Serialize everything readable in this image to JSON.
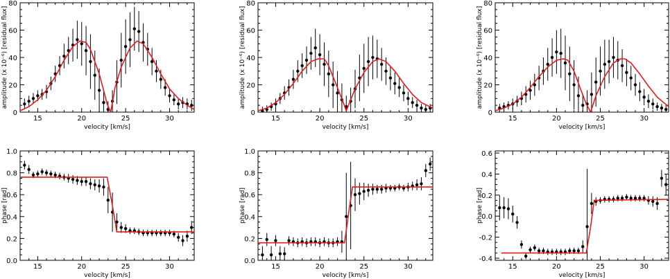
{
  "figure": {
    "layout": "2 rows x 3 columns",
    "model_color": "#e41a1c",
    "data_color": "#000000"
  },
  "chart_data": [
    {
      "type": "scatter",
      "row": "top",
      "col": 1,
      "xlabel": "velocity [km/s]",
      "ylabel": "amplitude (x 10⁻⁶) [residual flux]",
      "xlim": [
        13,
        32.8
      ],
      "ylim": [
        0,
        80
      ],
      "xticks": [
        15,
        20,
        25,
        30
      ],
      "yticks": [
        0,
        20,
        40,
        60,
        80
      ],
      "series": [
        {
          "kind": "points_with_errorbars",
          "x": [
            13.5,
            14.0,
            14.5,
            15.0,
            15.5,
            16.0,
            16.5,
            17.0,
            17.5,
            18.0,
            18.5,
            19.0,
            19.5,
            20.0,
            20.5,
            21.0,
            21.5,
            22.0,
            22.5,
            23.0,
            23.5,
            24.0,
            24.5,
            25.0,
            25.5,
            26.0,
            26.5,
            27.0,
            27.5,
            28.0,
            28.5,
            29.0,
            29.5,
            30.0,
            30.5,
            31.0,
            31.5,
            32.0,
            32.5
          ],
          "y": [
            6,
            8,
            10,
            12,
            13,
            15,
            21,
            28,
            34,
            41,
            45,
            49,
            53,
            50,
            45,
            37,
            27,
            16,
            7,
            2,
            8,
            22,
            38,
            48,
            53,
            61,
            59,
            51,
            46,
            37,
            30,
            24,
            18,
            12,
            9,
            6,
            7,
            6,
            5
          ],
          "err": [
            4,
            4,
            4,
            4,
            4,
            5,
            5,
            6,
            7,
            9,
            10,
            12,
            14,
            16,
            18,
            20,
            18,
            16,
            8,
            6,
            8,
            16,
            20,
            20,
            20,
            16,
            15,
            14,
            12,
            10,
            8,
            7,
            6,
            5,
            4,
            4,
            4,
            4,
            4
          ]
        },
        {
          "kind": "model_curve",
          "x": [
            13,
            14,
            15,
            16,
            17,
            18,
            19,
            19.8,
            20.5,
            21,
            22,
            22.5,
            22.9,
            23.3,
            23.8,
            24.5,
            25.5,
            26.3,
            27,
            28,
            29,
            30,
            31,
            32,
            32.8
          ],
          "y": [
            1,
            4,
            9,
            16,
            26,
            38,
            48,
            52,
            51,
            46,
            28,
            16,
            6,
            0,
            18,
            33,
            47,
            52,
            50,
            40,
            28,
            17,
            10,
            5,
            2
          ]
        }
      ]
    },
    {
      "type": "scatter",
      "row": "top",
      "col": 2,
      "xlabel": "velocity [km/s]",
      "ylabel": "amplitude (x 10⁻⁶) [residual flux]",
      "xlim": [
        13,
        32.8
      ],
      "ylim": [
        0,
        80
      ],
      "xticks": [
        15,
        20,
        25,
        30
      ],
      "yticks": [
        0,
        20,
        40,
        60,
        80
      ],
      "series": [
        {
          "kind": "points_with_errorbars",
          "x": [
            13.5,
            14.0,
            14.5,
            15.0,
            15.5,
            16.0,
            16.5,
            17.0,
            17.5,
            18.0,
            18.5,
            19.0,
            19.5,
            20.0,
            20.5,
            21.0,
            21.5,
            22.0,
            22.5,
            23.0,
            23.5,
            24.0,
            24.5,
            25.0,
            25.5,
            26.0,
            26.5,
            27.0,
            27.5,
            28.0,
            28.5,
            29.0,
            29.5,
            30.0,
            30.5,
            31.0,
            31.5,
            32.0,
            32.5
          ],
          "y": [
            1,
            2,
            4,
            6,
            10,
            14,
            18,
            24,
            30,
            34,
            38,
            43,
            47,
            42,
            35,
            28,
            20,
            14,
            9,
            4,
            8,
            17,
            25,
            32,
            37,
            40,
            39,
            35,
            30,
            25,
            21,
            18,
            14,
            10,
            7,
            5,
            3,
            2,
            3
          ],
          "err": [
            3,
            3,
            3,
            4,
            4,
            5,
            6,
            7,
            8,
            9,
            10,
            12,
            14,
            15,
            16,
            17,
            17,
            16,
            12,
            8,
            10,
            14,
            17,
            18,
            18,
            16,
            14,
            12,
            10,
            9,
            8,
            7,
            6,
            5,
            4,
            4,
            3,
            3,
            3
          ]
        },
        {
          "kind": "model_curve",
          "x": [
            13,
            14,
            15,
            16,
            17,
            18,
            19,
            19.8,
            20.5,
            21,
            22,
            22.6,
            23,
            23.5,
            24,
            25,
            26,
            26.7,
            27.5,
            28.5,
            29.5,
            30.5,
            31.5,
            32.8
          ],
          "y": [
            1,
            3,
            7,
            13,
            21,
            30,
            37,
            39,
            39,
            34,
            18,
            8,
            1,
            9,
            17,
            29,
            37,
            39,
            37,
            30,
            21,
            13,
            7,
            3
          ]
        }
      ]
    },
    {
      "type": "scatter",
      "row": "top",
      "col": 3,
      "xlabel": "velocity [km/s]",
      "ylabel": "amplitude (x 10⁻⁶) [residual flux]",
      "xlim": [
        13,
        32.8
      ],
      "ylim": [
        0,
        80
      ],
      "xticks": [
        15,
        20,
        25,
        30
      ],
      "yticks": [
        0,
        20,
        40,
        60,
        80
      ],
      "series": [
        {
          "kind": "points_with_errorbars",
          "x": [
            13.5,
            14.0,
            14.5,
            15.0,
            15.5,
            16.0,
            16.5,
            17.0,
            17.5,
            18.0,
            18.5,
            19.0,
            19.5,
            20.0,
            20.5,
            21.0,
            21.5,
            22.0,
            22.5,
            23.0,
            23.5,
            24.0,
            24.5,
            25.0,
            25.5,
            26.0,
            26.5,
            27.0,
            27.5,
            28.0,
            28.5,
            29.0,
            29.5,
            30.0,
            30.5,
            31.0,
            31.5,
            32.0,
            32.5
          ],
          "y": [
            3,
            4,
            5,
            6,
            8,
            10,
            13,
            16,
            20,
            25,
            30,
            35,
            40,
            44,
            43,
            36,
            28,
            20,
            12,
            5,
            6,
            13,
            22,
            30,
            35,
            37,
            40,
            38,
            34,
            29,
            25,
            20,
            15,
            11,
            8,
            6,
            4,
            3,
            2
          ],
          "err": [
            3,
            3,
            3,
            4,
            4,
            5,
            6,
            7,
            8,
            9,
            10,
            12,
            14,
            16,
            18,
            20,
            20,
            18,
            14,
            8,
            10,
            16,
            18,
            18,
            18,
            16,
            15,
            14,
            12,
            10,
            9,
            8,
            7,
            6,
            5,
            4,
            3,
            3,
            3
          ]
        },
        {
          "kind": "model_curve",
          "x": [
            13,
            14,
            15,
            16,
            17,
            18,
            19,
            20,
            20.8,
            21.3,
            22,
            22.8,
            23.4,
            23.9,
            24.5,
            25.5,
            26.5,
            27.3,
            27.8,
            28.5,
            29.5,
            30.5,
            31.5,
            32.8
          ],
          "y": [
            1,
            3,
            6,
            11,
            18,
            26,
            33,
            38,
            39,
            38,
            30,
            16,
            6,
            0,
            12,
            26,
            36,
            39,
            39,
            36,
            28,
            19,
            11,
            4
          ]
        }
      ]
    },
    {
      "type": "scatter",
      "row": "bottom",
      "col": 1,
      "xlabel": "velocity [km/s]",
      "ylabel": "phase [rad]",
      "xlim": [
        13,
        32.8
      ],
      "ylim": [
        0,
        1.0
      ],
      "xticks": [
        15,
        20,
        25,
        30
      ],
      "yticks": [
        0.0,
        0.2,
        0.4,
        0.6,
        0.8,
        1.0
      ],
      "ytick_labels": [
        "0.0",
        "0.2",
        "0.4",
        "0.6",
        "0.8",
        "1.0"
      ],
      "series": [
        {
          "kind": "points_with_errorbars",
          "x": [
            13.5,
            14.0,
            14.5,
            15.0,
            15.5,
            16.0,
            16.5,
            17.0,
            17.5,
            18.0,
            18.5,
            19.0,
            19.5,
            20.0,
            20.5,
            21.0,
            21.5,
            22.0,
            22.5,
            23.0,
            23.5,
            24.0,
            24.5,
            25.0,
            25.5,
            26.0,
            26.5,
            27.0,
            27.5,
            28.0,
            28.5,
            29.0,
            29.5,
            30.0,
            30.5,
            31.0,
            31.5,
            32.0,
            32.5
          ],
          "y": [
            0.87,
            0.83,
            0.78,
            0.79,
            0.81,
            0.8,
            0.79,
            0.78,
            0.77,
            0.76,
            0.75,
            0.74,
            0.73,
            0.72,
            0.72,
            0.7,
            0.69,
            0.68,
            0.67,
            0.55,
            0.44,
            0.35,
            0.3,
            0.29,
            0.27,
            0.27,
            0.26,
            0.25,
            0.25,
            0.25,
            0.25,
            0.25,
            0.25,
            0.25,
            0.24,
            0.21,
            0.18,
            0.22,
            0.3
          ],
          "err": [
            0.04,
            0.04,
            0.03,
            0.03,
            0.03,
            0.03,
            0.03,
            0.03,
            0.03,
            0.03,
            0.04,
            0.04,
            0.04,
            0.04,
            0.04,
            0.05,
            0.05,
            0.06,
            0.08,
            0.12,
            0.18,
            0.08,
            0.05,
            0.04,
            0.03,
            0.03,
            0.03,
            0.03,
            0.03,
            0.03,
            0.03,
            0.03,
            0.03,
            0.03,
            0.03,
            0.04,
            0.05,
            0.05,
            0.06
          ]
        },
        {
          "kind": "model_curve",
          "x": [
            13,
            22.9,
            23.5,
            24.0,
            32.8
          ],
          "y": [
            0.76,
            0.76,
            0.5,
            0.26,
            0.26
          ]
        }
      ]
    },
    {
      "type": "scatter",
      "row": "bottom",
      "col": 2,
      "xlabel": "velocity [km/s]",
      "ylabel": "phase [rad]",
      "xlim": [
        13,
        32.8
      ],
      "ylim": [
        0,
        1.0
      ],
      "xticks": [
        15,
        20,
        25,
        30
      ],
      "yticks": [
        0.0,
        0.2,
        0.4,
        0.6,
        0.8,
        1.0
      ],
      "ytick_labels": [
        "0.0",
        "0.2",
        "0.4",
        "0.6",
        "0.8",
        "1.0"
      ],
      "series": [
        {
          "kind": "points_with_errorbars",
          "x": [
            13.5,
            14.0,
            14.5,
            15.0,
            15.5,
            16.0,
            16.5,
            17.0,
            17.5,
            18.0,
            18.5,
            19.0,
            19.5,
            20.0,
            20.5,
            21.0,
            21.5,
            22.0,
            22.5,
            23.0,
            23.5,
            24.0,
            24.5,
            25.0,
            25.5,
            26.0,
            26.5,
            27.0,
            27.5,
            28.0,
            28.5,
            29.0,
            29.5,
            30.0,
            30.5,
            31.0,
            31.5,
            32.0,
            32.5
          ],
          "y": [
            0.05,
            0.19,
            0.05,
            0.18,
            0.06,
            0.06,
            0.18,
            0.17,
            0.16,
            0.17,
            0.16,
            0.17,
            0.17,
            0.16,
            0.17,
            0.16,
            0.16,
            0.17,
            0.17,
            0.4,
            0.5,
            0.6,
            0.61,
            0.63,
            0.64,
            0.65,
            0.65,
            0.65,
            0.66,
            0.66,
            0.66,
            0.67,
            0.66,
            0.67,
            0.68,
            0.69,
            0.7,
            0.82,
            0.88
          ],
          "err": [
            0.08,
            0.06,
            0.08,
            0.05,
            0.07,
            0.06,
            0.04,
            0.04,
            0.04,
            0.04,
            0.04,
            0.04,
            0.04,
            0.04,
            0.04,
            0.04,
            0.04,
            0.04,
            0.1,
            0.4,
            0.4,
            0.15,
            0.1,
            0.08,
            0.06,
            0.05,
            0.04,
            0.04,
            0.04,
            0.03,
            0.03,
            0.03,
            0.03,
            0.04,
            0.04,
            0.05,
            0.06,
            0.06,
            0.06
          ]
        },
        {
          "kind": "model_curve",
          "x": [
            13,
            22.8,
            23.3,
            23.7,
            32.8
          ],
          "y": [
            0.16,
            0.16,
            0.45,
            0.67,
            0.67
          ]
        }
      ]
    },
    {
      "type": "scatter",
      "row": "bottom",
      "col": 3,
      "xlabel": "velocity [km/s]",
      "ylabel": "phase [rad]",
      "xlim": [
        13,
        32.8
      ],
      "ylim": [
        -0.42,
        0.62
      ],
      "xticks": [
        15,
        20,
        25,
        30
      ],
      "yticks": [
        -0.4,
        -0.2,
        0.0,
        0.2,
        0.4,
        0.6
      ],
      "ytick_labels": [
        "-0.4",
        "-0.2",
        "0.0",
        "0.2",
        "0.4",
        "0.6"
      ],
      "series": [
        {
          "kind": "points_with_errorbars",
          "x": [
            13.5,
            14.0,
            14.5,
            15.0,
            15.5,
            16.0,
            16.5,
            17.0,
            17.5,
            18.0,
            18.5,
            19.0,
            19.5,
            20.0,
            20.5,
            21.0,
            21.5,
            22.0,
            22.5,
            23.0,
            23.5,
            24.0,
            24.5,
            25.0,
            25.5,
            26.0,
            26.5,
            27.0,
            27.5,
            28.0,
            28.5,
            29.0,
            29.5,
            30.0,
            30.5,
            31.0,
            31.5,
            32.0,
            32.5
          ],
          "y": [
            0.08,
            0.08,
            0.07,
            0.02,
            -0.06,
            -0.27,
            -0.38,
            -0.32,
            -0.3,
            -0.33,
            -0.33,
            -0.34,
            -0.34,
            -0.34,
            -0.34,
            -0.34,
            -0.33,
            -0.33,
            -0.33,
            -0.29,
            -0.1,
            0.12,
            0.14,
            0.15,
            0.16,
            0.16,
            0.16,
            0.17,
            0.17,
            0.18,
            0.17,
            0.17,
            0.17,
            0.17,
            0.15,
            0.14,
            0.12,
            0.36,
            0.3
          ],
          "err": [
            0.12,
            0.1,
            0.1,
            0.08,
            0.06,
            0.04,
            0.03,
            0.03,
            0.03,
            0.03,
            0.03,
            0.03,
            0.03,
            0.03,
            0.03,
            0.03,
            0.03,
            0.03,
            0.03,
            0.06,
            0.55,
            0.1,
            0.04,
            0.03,
            0.03,
            0.03,
            0.03,
            0.03,
            0.03,
            0.03,
            0.03,
            0.03,
            0.03,
            0.03,
            0.04,
            0.05,
            0.06,
            0.08,
            0.1
          ]
        },
        {
          "kind": "model_curve",
          "x": [
            13.7,
            23.4,
            23.9,
            24.3,
            32.8
          ],
          "y": [
            -0.35,
            -0.35,
            -0.1,
            0.15,
            0.16
          ]
        }
      ]
    }
  ]
}
